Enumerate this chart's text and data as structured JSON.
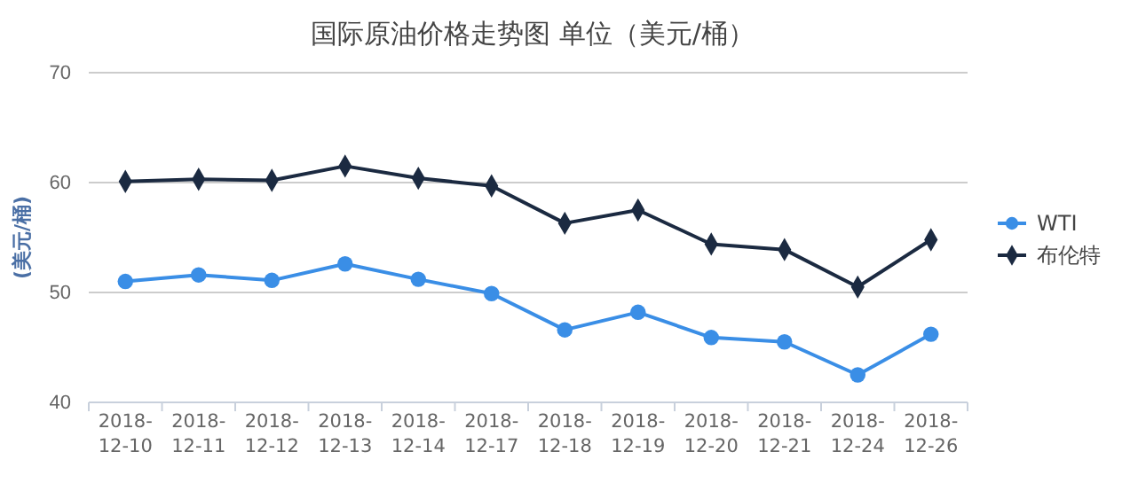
{
  "chart_data": {
    "type": "line",
    "title": "国际原油价格走势图 单位（美元/桶）",
    "ylabel": "(美元/桶)",
    "categories": [
      "2018-12-10",
      "2018-12-11",
      "2018-12-12",
      "2018-12-13",
      "2018-12-14",
      "2018-12-17",
      "2018-12-18",
      "2018-12-19",
      "2018-12-20",
      "2018-12-21",
      "2018-12-24",
      "2018-12-26"
    ],
    "series": [
      {
        "name": "WTI",
        "color": "#3a8ee6",
        "marker": "circle",
        "values": [
          51.0,
          51.6,
          51.1,
          52.6,
          51.2,
          49.9,
          46.6,
          48.2,
          45.9,
          45.5,
          42.5,
          46.2
        ]
      },
      {
        "name": "布伦特",
        "color": "#1b2a41",
        "marker": "diamond",
        "values": [
          60.1,
          60.3,
          60.2,
          61.5,
          60.4,
          59.7,
          56.3,
          57.5,
          54.4,
          53.9,
          50.5,
          54.8
        ]
      }
    ],
    "ylim": [
      40,
      70
    ],
    "yticks": [
      40,
      50,
      60,
      70
    ],
    "grid": "y",
    "legend": "right",
    "line_style": "solid"
  }
}
